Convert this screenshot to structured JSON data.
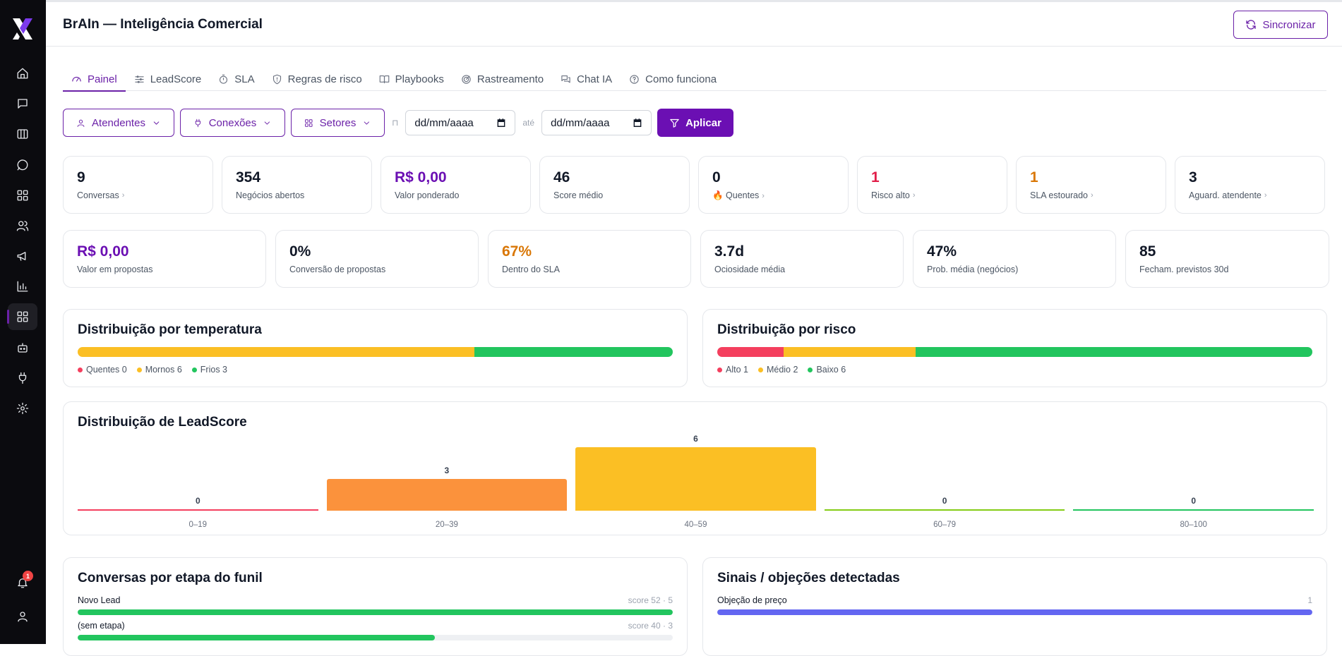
{
  "app": {
    "title": "BrAIn — Inteligência Comercial",
    "sync_label": "Sincronizar",
    "notification_count": "1"
  },
  "tabs": [
    {
      "label": "Painel",
      "icon": "gauge-icon",
      "active": true
    },
    {
      "label": "LeadScore",
      "icon": "sliders-icon"
    },
    {
      "label": "SLA",
      "icon": "timer-icon"
    },
    {
      "label": "Regras de risco",
      "icon": "shield-icon"
    },
    {
      "label": "Playbooks",
      "icon": "book-icon"
    },
    {
      "label": "Rastreamento",
      "icon": "radar-icon"
    },
    {
      "label": "Chat IA",
      "icon": "chat-icon"
    },
    {
      "label": "Como funciona",
      "icon": "help-circle-icon"
    }
  ],
  "filters": {
    "attendants": "Atendentes",
    "connections": "Conexões",
    "sectors": "Setores",
    "from_sep": "⊓",
    "date_from": "dd/mm/aaaa",
    "until_sep": "até",
    "date_to": "dd/mm/aaaa",
    "apply": "Aplicar"
  },
  "kpis_row1": [
    {
      "value": "9",
      "label": "Conversas",
      "color": "default",
      "link": true
    },
    {
      "value": "354",
      "label": "Negócios abertos",
      "color": "default",
      "link": false
    },
    {
      "value": "R$ 0,00",
      "label": "Valor ponderado",
      "color": "purple",
      "link": false
    },
    {
      "value": "46",
      "label": "Score médio",
      "color": "default",
      "link": false
    },
    {
      "value": "0",
      "label": "🔥 Quentes",
      "color": "default",
      "link": true
    },
    {
      "value": "1",
      "label": "Risco alto",
      "color": "red",
      "link": true
    },
    {
      "value": "1",
      "label": "SLA estourado",
      "color": "orange",
      "link": true
    },
    {
      "value": "3",
      "label": "Aguard. atendente",
      "color": "default",
      "link": true
    }
  ],
  "kpis_row2": [
    {
      "value": "R$ 0,00",
      "label": "Valor em propostas",
      "color": "purple"
    },
    {
      "value": "0%",
      "label": "Conversão de propostas",
      "color": "default"
    },
    {
      "value": "67%",
      "label": "Dentro do SLA",
      "color": "orange"
    },
    {
      "value": "3.7d",
      "label": "Ociosidade média",
      "color": "default"
    },
    {
      "value": "47%",
      "label": "Prob. média (negócios)",
      "color": "default"
    },
    {
      "value": "85",
      "label": "Fecham. previstos 30d",
      "color": "default"
    }
  ],
  "temperature": {
    "title": "Distribuição por temperatura",
    "segments": [
      {
        "label": "Quentes 0",
        "value": 0,
        "color": "#f43f5e"
      },
      {
        "label": "Mornos 6",
        "value": 6,
        "color": "#fbbf24"
      },
      {
        "label": "Frios 3",
        "value": 3,
        "color": "#22c55e"
      }
    ]
  },
  "risk": {
    "title": "Distribuição por risco",
    "segments": [
      {
        "label": "Alto 1",
        "value": 1,
        "color": "#f43f5e"
      },
      {
        "label": "Médio 2",
        "value": 2,
        "color": "#fbbf24"
      },
      {
        "label": "Baixo 6",
        "value": 6,
        "color": "#22c55e"
      }
    ]
  },
  "leadscore": {
    "title": "Distribuição de LeadScore",
    "chart_data": {
      "type": "bar",
      "categories": [
        "0–19",
        "20–39",
        "40–59",
        "60–79",
        "80–100"
      ],
      "values": [
        0,
        3,
        6,
        0,
        0
      ],
      "colors": [
        "#f43f5e",
        "#fb923c",
        "#fbbf24",
        "#84cc16",
        "#22c55e"
      ]
    }
  },
  "funnel": {
    "title": "Conversas por etapa do funil",
    "rows": [
      {
        "label": "Novo Lead",
        "meta": "score 52 · 5",
        "fraction": 1.0,
        "color": "#22c55e"
      },
      {
        "label": "(sem etapa)",
        "meta": "score 40 · 3",
        "fraction": 0.6,
        "color": "#22c55e"
      }
    ]
  },
  "signals": {
    "title": "Sinais / objeções detectadas",
    "rows": [
      {
        "label": "Objeção de preço",
        "meta": "1",
        "fraction": 1.0,
        "color": "#6366f1"
      }
    ]
  }
}
